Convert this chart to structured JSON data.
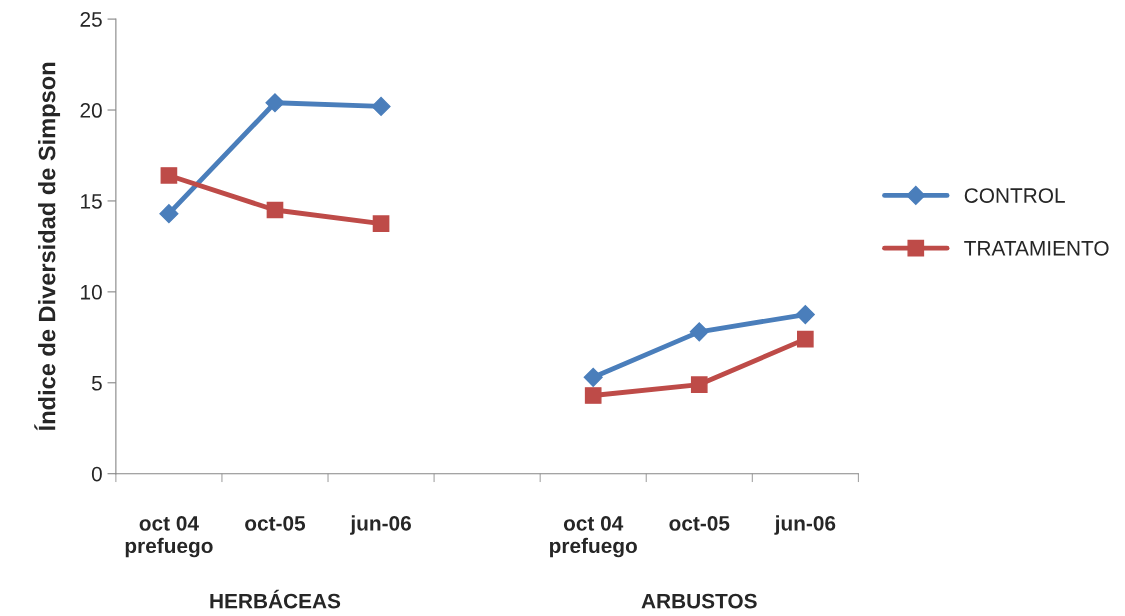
{
  "chart_data": {
    "type": "line",
    "ylabel": "Índice de Diversidad de Simpson",
    "categories": [
      "oct 04\nprefuego",
      "oct-05",
      "jun-06",
      null,
      "oct 04\nprefuego",
      "oct-05",
      "jun-06"
    ],
    "series": [
      {
        "name": "CONTROL",
        "color": "#4a7ebb",
        "marker": "diamond",
        "values": [
          14.3,
          20.4,
          20.2,
          null,
          5.3,
          7.8,
          8.75
        ]
      },
      {
        "name": "TRATAMIENTO",
        "color": "#be4b48",
        "marker": "square",
        "values": [
          16.4,
          14.5,
          13.75,
          null,
          4.3,
          4.9,
          7.4
        ]
      }
    ],
    "ylim": [
      0,
      25
    ],
    "yticks": [
      0,
      5,
      10,
      15,
      20,
      25
    ],
    "annotations": [
      "HERBÁCEAS",
      "ARBUSTOS"
    ],
    "legend": "right",
    "grid": false,
    "line_style": "solid"
  }
}
